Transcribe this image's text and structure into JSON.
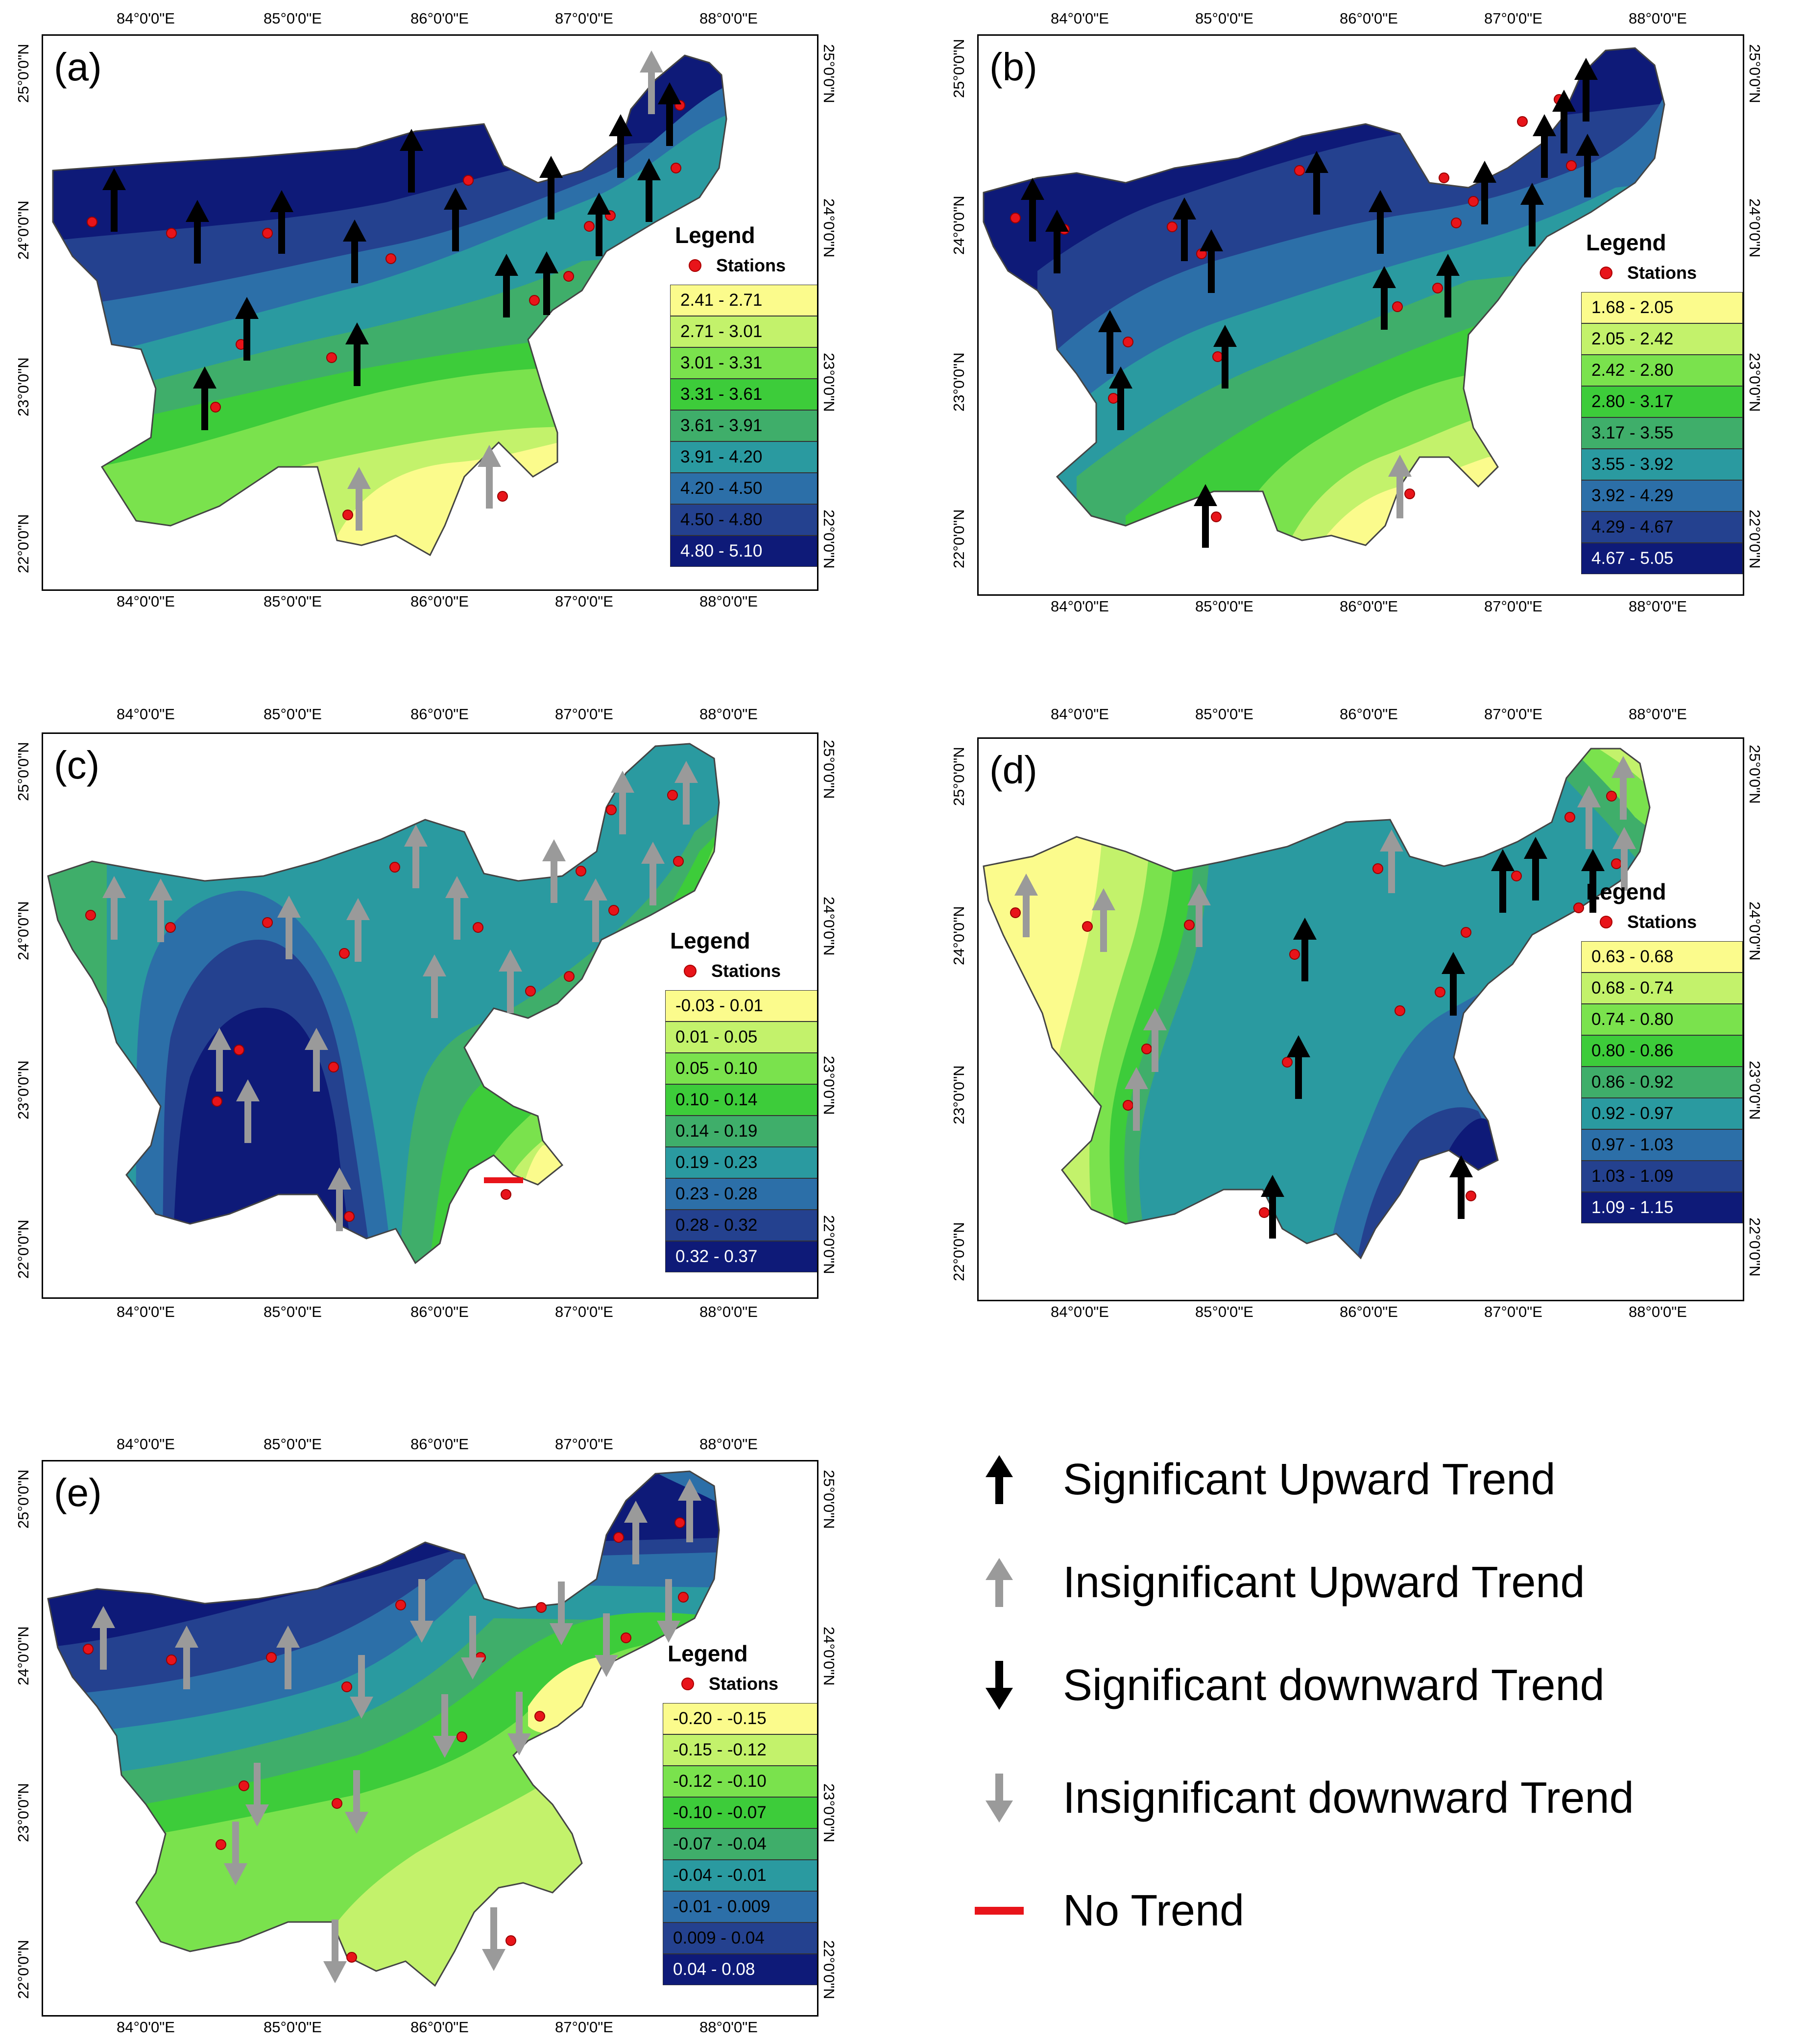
{
  "axis": {
    "lon_labels": [
      "84°0'0\"E",
      "85°0'0\"E",
      "86°0'0\"E",
      "87°0'0\"E",
      "88°0'0\"E"
    ],
    "lat_labels": [
      "25°0'0\"N",
      "24°0'0\"N",
      "23°0'0\"N",
      "22°0'0\"N"
    ]
  },
  "panels": [
    {
      "id": "a",
      "label": "(a)",
      "legend_title": "Legend",
      "stations_label": "Stations",
      "classes": [
        "2.41 - 2.71",
        "2.71 - 3.01",
        "3.01 - 3.31",
        "3.31 - 3.61",
        "3.61 - 3.91",
        "3.91 - 4.20",
        "4.20 - 4.50",
        "4.50 - 4.80",
        "4.80 - 5.10"
      ]
    },
    {
      "id": "b",
      "label": "(b)",
      "legend_title": "Legend",
      "stations_label": "Stations",
      "classes": [
        "1.68 - 2.05",
        "2.05 - 2.42",
        "2.42 - 2.80",
        "2.80 - 3.17",
        "3.17 - 3.55",
        "3.55 - 3.92",
        "3.92 - 4.29",
        "4.29 - 4.67",
        "4.67 - 5.05"
      ]
    },
    {
      "id": "c",
      "label": "(c)",
      "legend_title": "Legend",
      "stations_label": "Stations",
      "classes": [
        "-0.03 - 0.01",
        "0.01 - 0.05",
        "0.05 - 0.10",
        "0.10 - 0.14",
        "0.14 - 0.19",
        "0.19 - 0.23",
        "0.23 - 0.28",
        "0.28 - 0.32",
        "0.32 - 0.37"
      ]
    },
    {
      "id": "d",
      "label": "(d)",
      "legend_title": "Legend",
      "stations_label": "Stations",
      "classes": [
        "0.63 - 0.68",
        "0.68 - 0.74",
        "0.74 - 0.80",
        "0.80 - 0.86",
        "0.86 - 0.92",
        "0.92 - 0.97",
        "0.97 - 1.03",
        "1.03 - 1.09",
        "1.09 - 1.15"
      ]
    },
    {
      "id": "e",
      "label": "(e)",
      "legend_title": "Legend",
      "stations_label": "Stations",
      "classes": [
        "-0.20 - -0.15",
        "-0.15 - -0.12",
        "-0.12 - -0.10",
        "-0.10 - -0.07",
        "-0.07 - -0.04",
        "-0.04 - -0.01",
        "-0.01 - 0.009",
        "0.009 - 0.04",
        "0.04 - 0.08"
      ]
    }
  ],
  "palette": [
    "#fbfb8c",
    "#c3f26b",
    "#7ae24d",
    "#3dcc3a",
    "#3fae6a",
    "#2a9aa0",
    "#2c6fa8",
    "#24418f",
    "#0e1a78"
  ],
  "key": {
    "sig_up": "Significant Upward Trend",
    "insig_up": "Insignificant Upward Trend",
    "sig_down": "Significant downward Trend",
    "insig_down": "Insignificant downward Trend",
    "no_trend": "No Trend"
  },
  "colors": {
    "significant": "#000000",
    "insignificant": "#9a9a9a",
    "no_trend": "#e8141a",
    "station": "#e8141a"
  }
}
